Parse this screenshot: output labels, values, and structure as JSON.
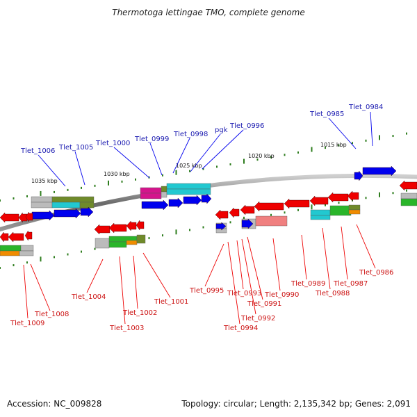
{
  "title": "Thermotoga lettingae TMO, complete genome",
  "footer": {
    "accession": "Accession: NC_009828",
    "summary": "Topology: circular; Length: 2,135,342 bp; Genes: 2,091"
  },
  "scale_labels": [
    "1035 kbp",
    "1030 kbp",
    "1025 kbp",
    "1020 kbp",
    "1015 kbp"
  ],
  "forward_gene_labels": [
    "Tlet_1006",
    "Tlet_1005",
    "Tlet_1000",
    "Tlet_0999",
    "Tlet_0998",
    "pgk",
    "Tlet_0996",
    "Tlet_0985",
    "Tlet_0984"
  ],
  "reverse_gene_labels": [
    "Tlet_1009",
    "Tlet_1008",
    "Tlet_1004",
    "Tlet_1003",
    "Tlet_1002",
    "Tlet_1001",
    "Tlet_0995",
    "Tlet_0994",
    "Tlet_0993",
    "Tlet_0992",
    "Tlet_0991",
    "Tlet_0990",
    "Tlet_0989",
    "Tlet_0988",
    "Tlet_0987",
    "Tlet_0986"
  ],
  "colors": {
    "backbone": "#808080",
    "forward_gene": "#0000ee",
    "reverse_gene": "#ee0000",
    "forward_label": "#1a1ab0",
    "reverse_label": "#cc1111",
    "tick_dot": "#2e7d1e",
    "magenta": "#d4148c",
    "cyan": "#22c8d0",
    "olive": "#6f8a2a",
    "green": "#2ab52a",
    "orange": "#f08c00",
    "pink": "#f08080",
    "grey": "#bbbbbb"
  }
}
